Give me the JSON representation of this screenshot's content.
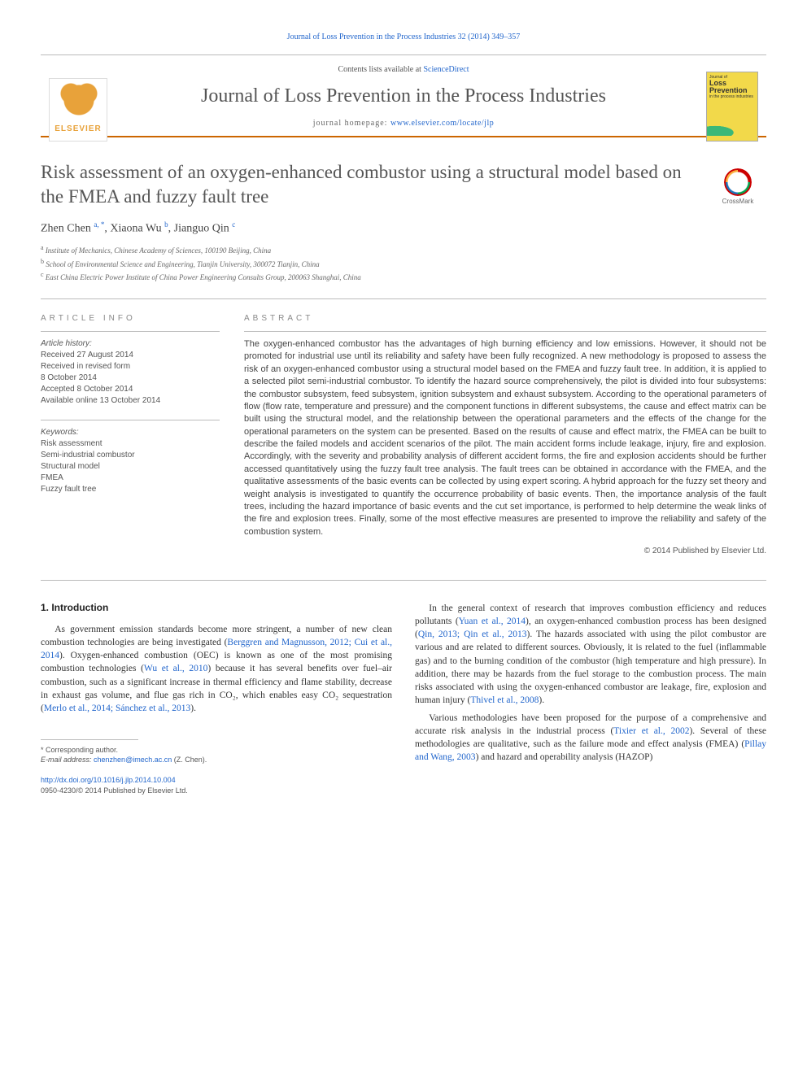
{
  "colors": {
    "accent_orange": "#cc6600",
    "link_blue": "#2266cc",
    "text_gray": "#555555",
    "cover_yellow": "#f2d94a",
    "elsevier_orange": "#e8a23a"
  },
  "top_citation": "Journal of Loss Prevention in the Process Industries 32 (2014) 349–357",
  "header": {
    "contents_prefix": "Contents lists available at ",
    "contents_link": "ScienceDirect",
    "journal_title": "Journal of Loss Prevention in the Process Industries",
    "homepage_label": "journal homepage: ",
    "homepage_url": "www.elsevier.com/locate/jlp",
    "elsevier_word": "ELSEVIER",
    "cover_small": "Journal of",
    "cover_big": "Loss Prevention",
    "cover_sub": "in the process industries"
  },
  "crossmark_label": "CrossMark",
  "title": "Risk assessment of an oxygen-enhanced combustor using a structural model based on the FMEA and fuzzy fault tree",
  "authors_html": "Zhen Chen <sup>a, *</sup>, Xiaona Wu <sup>b</sup>, Jianguo Qin <sup>c</sup>",
  "affiliations": [
    {
      "sup": "a",
      "text": "Institute of Mechanics, Chinese Academy of Sciences, 100190 Beijing, China"
    },
    {
      "sup": "b",
      "text": "School of Environmental Science and Engineering, Tianjin University, 300072 Tianjin, China"
    },
    {
      "sup": "c",
      "text": "East China Electric Power Institute of China Power Engineering Consults Group, 200063 Shanghai, China"
    }
  ],
  "article_info_head": "ARTICLE INFO",
  "abstract_head": "ABSTRACT",
  "history": {
    "label": "Article history:",
    "received": "Received 27 August 2014",
    "revised": "Received in revised form\n8 October 2014",
    "accepted": "Accepted 8 October 2014",
    "online": "Available online 13 October 2014"
  },
  "keywords_label": "Keywords:",
  "keywords": [
    "Risk assessment",
    "Semi-industrial combustor",
    "Structural model",
    "FMEA",
    "Fuzzy fault tree"
  ],
  "abstract": "The oxygen-enhanced combustor has the advantages of high burning efficiency and low emissions. However, it should not be promoted for industrial use until its reliability and safety have been fully recognized. A new methodology is proposed to assess the risk of an oxygen-enhanced combustor using a structural model based on the FMEA and fuzzy fault tree. In addition, it is applied to a selected pilot semi-industrial combustor. To identify the hazard source comprehensively, the pilot is divided into four subsystems: the combustor subsystem, feed subsystem, ignition subsystem and exhaust subsystem. According to the operational parameters of flow (flow rate, temperature and pressure) and the component functions in different subsystems, the cause and effect matrix can be built using the structural model, and the relationship between the operational parameters and the effects of the change for the operational parameters on the system can be presented. Based on the results of cause and effect matrix, the FMEA can be built to describe the failed models and accident scenarios of the pilot. The main accident forms include leakage, injury, fire and explosion. Accordingly, with the severity and probability analysis of different accident forms, the fire and explosion accidents should be further accessed quantitatively using the fuzzy fault tree analysis. The fault trees can be obtained in accordance with the FMEA, and the qualitative assessments of the basic events can be collected by using expert scoring. A hybrid approach for the fuzzy set theory and weight analysis is investigated to quantify the occurrence probability of basic events. Then, the importance analysis of the fault trees, including the hazard importance of basic events and the cut set importance, is performed to help determine the weak links of the fire and explosion trees. Finally, some of the most effective measures are presented to improve the reliability and safety of the combustion system.",
  "copyright": "© 2014 Published by Elsevier Ltd.",
  "section1_head": "1. Introduction",
  "intro_p1_a": "As government emission standards become more stringent, a number of new clean combustion technologies are being investigated (",
  "intro_p1_ref1": "Berggren and Magnusson, 2012; Cui et al., 2014",
  "intro_p1_b": "). Oxygen-enhanced combustion (OEC) is known as one of the most promising combustion technologies (",
  "intro_p1_ref2": "Wu et al., 2010",
  "intro_p1_c": ") because it has several benefits over fuel–air combustion, such as a significant increase in thermal efficiency and flame stability, decrease in exhaust gas volume, and flue gas rich in CO₂, which enables easy CO₂ sequestration (",
  "intro_p1_ref3": "Merlo et al., 2014; Sánchez et al., 2013",
  "intro_p1_d": ").",
  "intro_p2_a": "In the general context of research that improves combustion efficiency and reduces pollutants (",
  "intro_p2_ref1": "Yuan et al., 2014",
  "intro_p2_b": "), an oxygen-enhanced combustion process has been designed (",
  "intro_p2_ref2": "Qin, 2013; Qin et al., 2013",
  "intro_p2_c": "). The hazards associated with using the pilot combustor are various and are related to different sources. Obviously, it is related to the fuel (inflammable gas) and to the burning condition of the combustor (high temperature and high pressure). In addition, there may be hazards from the fuel storage to the combustion process. The main risks associated with using the oxygen-enhanced combustor are leakage, fire, explosion and human injury (",
  "intro_p2_ref3": "Thivel et al., 2008",
  "intro_p2_d": ").",
  "intro_p3_a": "Various methodologies have been proposed for the purpose of a comprehensive and accurate risk analysis in the industrial process (",
  "intro_p3_ref1": "Tixier et al., 2002",
  "intro_p3_b": "). Several of these methodologies are qualitative, such as the failure mode and effect analysis (FMEA) (",
  "intro_p3_ref2": "Pillay and Wang, 2003",
  "intro_p3_c": ") and hazard and operability analysis (HAZOP)",
  "footnote": {
    "corresponding": "* Corresponding author.",
    "email_label": "E-mail address: ",
    "email": "chenzhen@imech.ac.cn",
    "email_who": " (Z. Chen)."
  },
  "doi": {
    "url": "http://dx.doi.org/10.1016/j.jlp.2014.10.004",
    "issn_line": "0950-4230/© 2014 Published by Elsevier Ltd."
  }
}
